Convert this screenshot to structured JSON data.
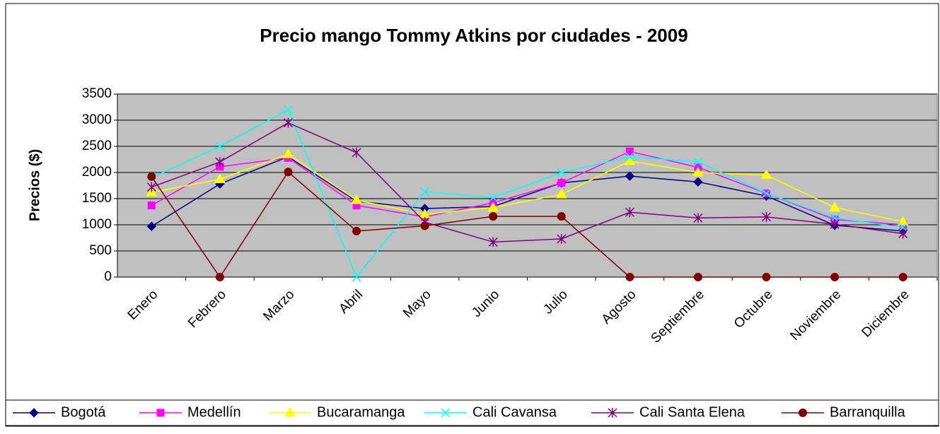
{
  "chart_data": {
    "type": "line",
    "title": "Precio mango Tommy Atkins por ciudades - 2009",
    "y_label": "Precios ($)",
    "categories": [
      "Enero",
      "Febrero",
      "Marzo",
      "Abril",
      "Mayo",
      "Junio",
      "Julio",
      "Agosto",
      "Septiembre",
      "Octubre",
      "Noviembre",
      "Diciembre"
    ],
    "series": [
      {
        "name": "Bogotá",
        "color": "#000080",
        "marker": "diamond",
        "values": [
          970,
          1780,
          2300,
          1450,
          1310,
          1350,
          1800,
          1930,
          1820,
          1550,
          990,
          880
        ]
      },
      {
        "name": "Medellín",
        "color": "#ff00ff",
        "marker": "square",
        "values": [
          1370,
          2110,
          2280,
          1370,
          1150,
          1420,
          1800,
          2400,
          2100,
          1600,
          1100,
          1000
        ]
      },
      {
        "name": "Bucaramanga",
        "color": "#ffff00",
        "marker": "triangle",
        "values": [
          1620,
          1870,
          2350,
          1470,
          1200,
          1330,
          1580,
          2220,
          2000,
          1950,
          1330,
          1060
        ]
      },
      {
        "name": "Cali Cavansa",
        "color": "#00ffff",
        "marker": "x",
        "values": [
          1900,
          2500,
          3200,
          0,
          1630,
          1520,
          2000,
          2300,
          2200,
          1600,
          1130,
          950
        ]
      },
      {
        "name": "Cali Santa Elena",
        "color": "#800080",
        "marker": "star",
        "values": [
          1720,
          2200,
          2950,
          2380,
          1050,
          670,
          730,
          1240,
          1130,
          1150,
          1010,
          830
        ]
      },
      {
        "name": "Barranquilla",
        "color": "#800000",
        "marker": "circle",
        "values": [
          1920,
          0,
          2010,
          880,
          980,
          1160,
          1160,
          0,
          0,
          0,
          0,
          0
        ]
      }
    ],
    "ylim": [
      0,
      3500
    ],
    "yticks": [
      0,
      500,
      1000,
      1500,
      2000,
      2500,
      3000,
      3500
    ],
    "grid": true,
    "legend": "bottom"
  }
}
